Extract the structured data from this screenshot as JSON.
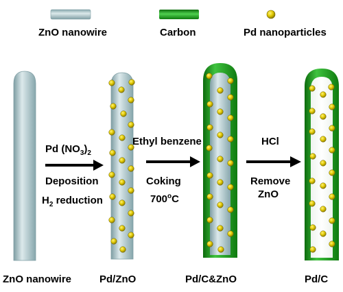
{
  "legend": {
    "zno": "ZnO nanowire",
    "carbon": "Carbon",
    "pd": "Pd nanoparticles"
  },
  "steps": [
    {
      "line1_main": "Pd (NO",
      "line1_sub": "3",
      "line1_close": ")",
      "line1_sub2": "2",
      "line2": "Deposition",
      "line3_main": "H",
      "line3_sub": "2",
      "line3_rest": " reduction"
    },
    {
      "line1": "Ethyl benzene",
      "line2": "Coking",
      "line3_main": "700",
      "line3_sup": "o",
      "line3_rest": "C"
    },
    {
      "line1": "HCl",
      "line2": "Remove",
      "line3": "ZnO"
    }
  ],
  "captions": [
    "ZnO nanowire",
    "Pd/ZnO",
    "Pd/C&ZnO",
    "Pd/C"
  ],
  "colors": {
    "zno": "#a9c3c8",
    "carbon": "#1a8f1a",
    "pd": "#e8d000",
    "arrow": "#000000"
  }
}
